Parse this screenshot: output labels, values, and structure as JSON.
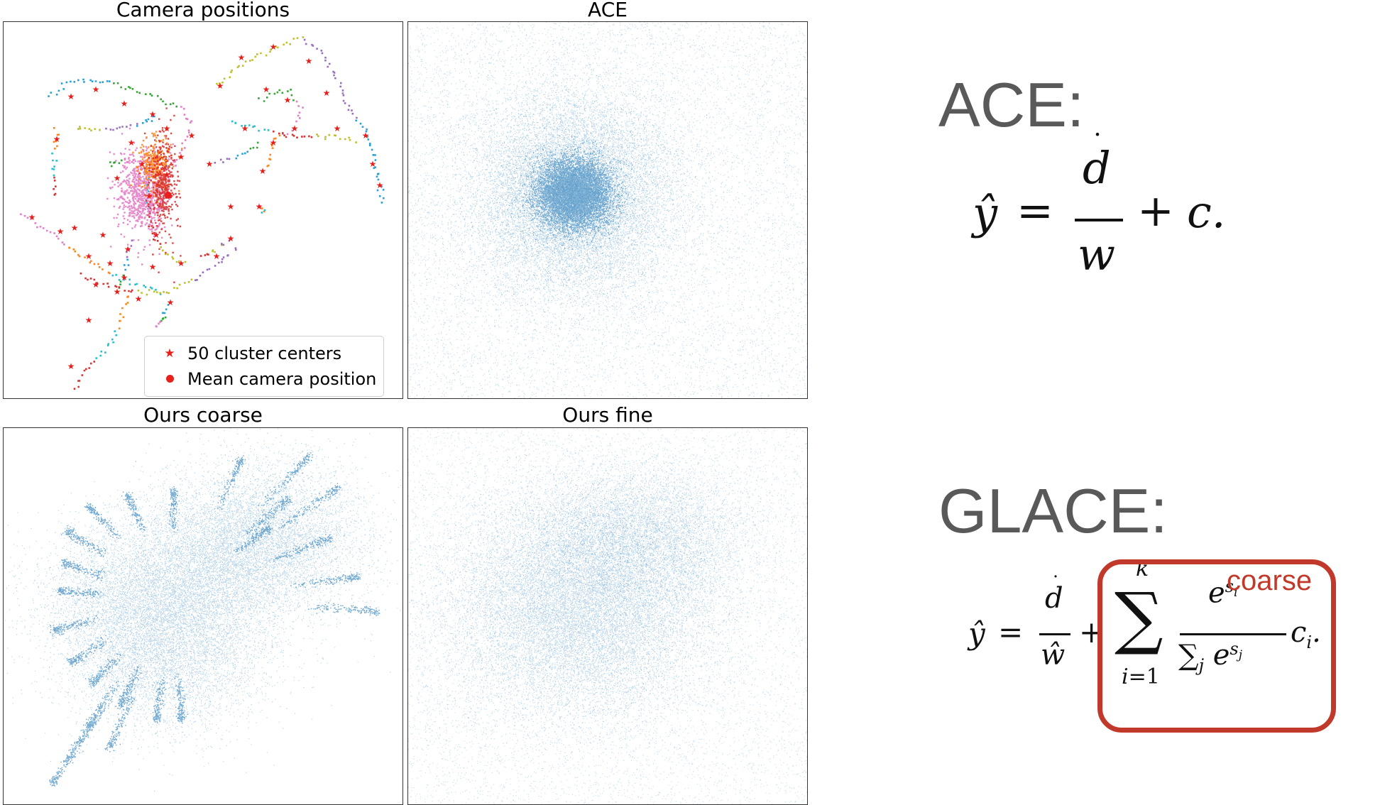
{
  "chart_data": [
    {
      "type": "scatter",
      "title": "Camera positions",
      "legend": {
        "placement": "bottom-right",
        "entries": [
          "50 cluster centers",
          "Mean camera position"
        ]
      },
      "series": [
        {
          "name": "50 cluster centers",
          "marker": "star",
          "color": "#e8201c",
          "count": 50
        },
        {
          "name": "Mean camera position",
          "marker": "circle",
          "color": "#e8201c",
          "count": 1
        }
      ],
      "grid": false,
      "axes_visible": false
    },
    {
      "type": "scatter",
      "title": "ACE",
      "color": "#1f77b4",
      "grid": false,
      "axes_visible": false
    },
    {
      "type": "scatter",
      "title": "Ours coarse",
      "color": "#1f77b4",
      "grid": false,
      "axes_visible": false
    },
    {
      "type": "scatter",
      "title": "Ours fine",
      "color": "#1f77b4",
      "grid": false,
      "axes_visible": false
    }
  ],
  "equations": {
    "ace_heading": "ACE:",
    "glace_heading": "GLACE:",
    "coarse_label": "coarse",
    "box_color": "#c0392b"
  },
  "colors": {
    "points": "#1f77b4",
    "camera_palette": [
      "#1f9bd8",
      "#2ca02c",
      "#e377c2",
      "#ff7f0e",
      "#17becf",
      "#d62728",
      "#bcbd22",
      "#9467bd"
    ]
  }
}
